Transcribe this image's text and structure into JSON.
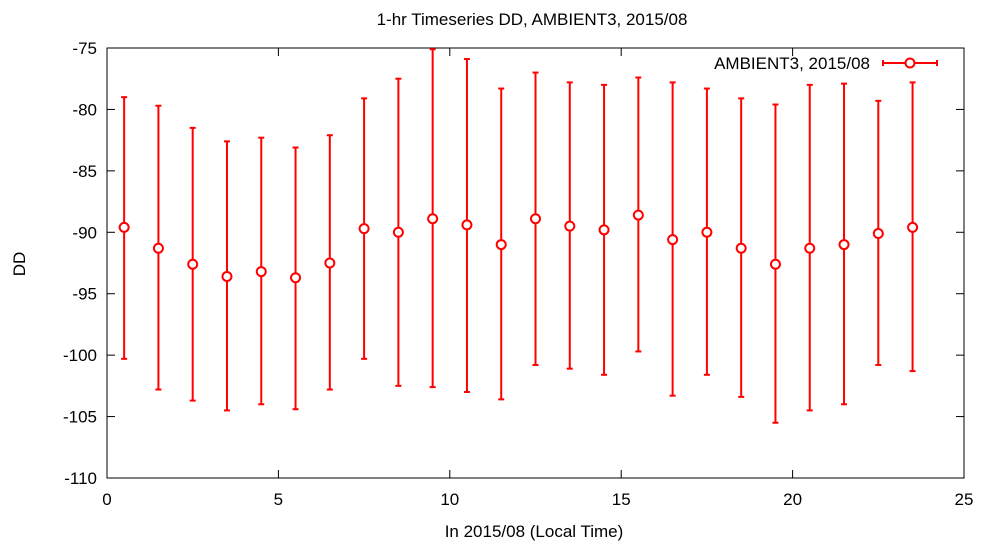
{
  "chart_data": {
    "type": "scatter",
    "title": "1-hr Timeseries DD, AMBIENT3, 2015/08",
    "xlabel": "In 2015/08 (Local Time)",
    "ylabel": "DD",
    "xlim": [
      0,
      25
    ],
    "ylim": [
      -110,
      -75
    ],
    "xticks": [
      0,
      5,
      10,
      15,
      20,
      25
    ],
    "yticks": [
      -75,
      -80,
      -85,
      -90,
      -95,
      -100,
      -105,
      -110
    ],
    "grid": false,
    "legend_position": "top-right",
    "series": [
      {
        "name": "AMBIENT3, 2015/08",
        "color": "#ff0000",
        "marker": "open-circle",
        "error_bars": true,
        "points": [
          {
            "x": 0.5,
            "y": -89.6,
            "low": -100.3,
            "high": -79.0
          },
          {
            "x": 1.5,
            "y": -91.3,
            "low": -102.8,
            "high": -79.7
          },
          {
            "x": 2.5,
            "y": -92.6,
            "low": -103.7,
            "high": -81.5
          },
          {
            "x": 3.5,
            "y": -93.6,
            "low": -104.5,
            "high": -82.6
          },
          {
            "x": 4.5,
            "y": -93.2,
            "low": -104.0,
            "high": -82.3
          },
          {
            "x": 5.5,
            "y": -93.7,
            "low": -104.4,
            "high": -83.1
          },
          {
            "x": 6.5,
            "y": -92.5,
            "low": -102.8,
            "high": -82.1
          },
          {
            "x": 7.5,
            "y": -89.7,
            "low": -100.3,
            "high": -79.1
          },
          {
            "x": 8.5,
            "y": -90.0,
            "low": -102.5,
            "high": -77.5
          },
          {
            "x": 9.5,
            "y": -88.9,
            "low": -102.6,
            "high": -75.1
          },
          {
            "x": 10.5,
            "y": -89.4,
            "low": -103.0,
            "high": -75.9
          },
          {
            "x": 11.5,
            "y": -91.0,
            "low": -103.6,
            "high": -78.3
          },
          {
            "x": 12.5,
            "y": -88.9,
            "low": -100.8,
            "high": -77.0
          },
          {
            "x": 13.5,
            "y": -89.5,
            "low": -101.1,
            "high": -77.8
          },
          {
            "x": 14.5,
            "y": -89.8,
            "low": -101.6,
            "high": -78.0
          },
          {
            "x": 15.5,
            "y": -88.6,
            "low": -99.7,
            "high": -77.4
          },
          {
            "x": 16.5,
            "y": -90.6,
            "low": -103.3,
            "high": -77.8
          },
          {
            "x": 17.5,
            "y": -90.0,
            "low": -101.6,
            "high": -78.3
          },
          {
            "x": 18.5,
            "y": -91.3,
            "low": -103.4,
            "high": -79.1
          },
          {
            "x": 19.5,
            "y": -92.6,
            "low": -105.5,
            "high": -79.6
          },
          {
            "x": 20.5,
            "y": -91.3,
            "low": -104.5,
            "high": -78.0
          },
          {
            "x": 21.5,
            "y": -91.0,
            "low": -104.0,
            "high": -77.9
          },
          {
            "x": 22.5,
            "y": -90.1,
            "low": -100.8,
            "high": -79.3
          },
          {
            "x": 23.5,
            "y": -89.6,
            "low": -101.3,
            "high": -77.8
          }
        ]
      }
    ]
  }
}
